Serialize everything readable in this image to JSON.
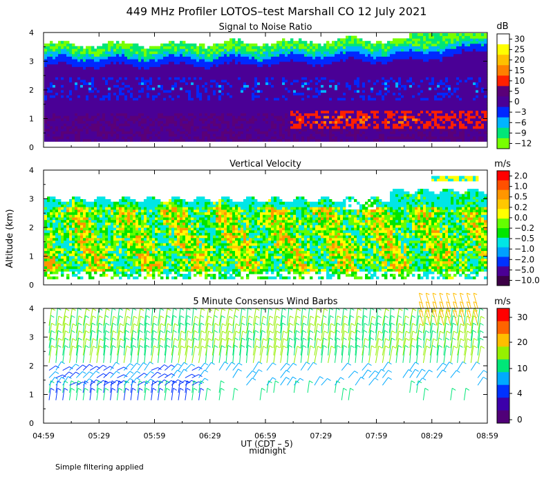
{
  "figure": {
    "title": "449 MHz Profiler LOTOS–test Marshall CO 12 July 2021",
    "ylabel": "Altitude (km)",
    "xlabel": "UT  (CDT – 5)",
    "midnight_label": "midnight",
    "footnote": "Simple filtering applied"
  },
  "chart_data": [
    {
      "type": "heatmap",
      "title": "Signal to Noise Ratio",
      "xlabel": "UT (CDT - 5)",
      "ylabel": "Altitude (km)",
      "x_ticks": [
        "04:59",
        "05:29",
        "05:59",
        "06:29",
        "06:59",
        "07:29",
        "07:59",
        "08:29",
        "08:59"
      ],
      "y_ticks": [
        "0",
        "1",
        "2",
        "3",
        "4"
      ],
      "ylim": [
        0,
        4
      ],
      "colorbar": {
        "unit": "dB",
        "ticks": [
          "30",
          "25",
          "20",
          "15",
          "10",
          "5",
          "0",
          "−3",
          "−6",
          "−9",
          "−12"
        ],
        "colors": [
          "#ffffff",
          "#ffff00",
          "#ffc000",
          "#ff8000",
          "#ff2000",
          "#5a0078",
          "#4a0096",
          "#0028ff",
          "#00b4ff",
          "#00e678",
          "#78ff00"
        ]
      }
    },
    {
      "type": "heatmap",
      "title": "Vertical Velocity",
      "xlabel": "UT (CDT - 5)",
      "ylabel": "Altitude (km)",
      "x_ticks": [
        "04:59",
        "05:29",
        "05:59",
        "06:29",
        "06:59",
        "07:29",
        "07:59",
        "08:29",
        "08:59"
      ],
      "y_ticks": [
        "0",
        "1",
        "2",
        "3",
        "4"
      ],
      "ylim": [
        0,
        4
      ],
      "colorbar": {
        "unit": "m/s",
        "ticks": [
          "2.0",
          "1.0",
          "0.5",
          "0.2",
          "0.0",
          "−0.2",
          "−0.5",
          "−1.0",
          "−2.0",
          "−5.0",
          "−10.0"
        ],
        "colors": [
          "#ff0000",
          "#ff5000",
          "#ff9600",
          "#ffc800",
          "#ffff00",
          "#64ff00",
          "#00e600",
          "#00e6e6",
          "#00a0ff",
          "#0032ff",
          "#4b0096",
          "#3c0046"
        ]
      }
    },
    {
      "type": "scatter",
      "title": "5 Minute Consensus Wind Barbs",
      "xlabel": "UT (CDT - 5)",
      "ylabel": "Altitude (km)",
      "x_ticks": [
        "04:59",
        "05:29",
        "05:59",
        "06:29",
        "06:59",
        "07:29",
        "07:59",
        "08:29",
        "08:59"
      ],
      "y_ticks": [
        "0",
        "1",
        "2",
        "3",
        "4"
      ],
      "ylim": [
        0,
        4
      ],
      "colorbar": {
        "unit": "m/s",
        "ticks": [
          "30",
          "20",
          "10",
          "4",
          "0"
        ],
        "colors": [
          "#ff0000",
          "#ff6400",
          "#ffbe00",
          "#96f000",
          "#00e678",
          "#00aaff",
          "#0032ff",
          "#3c00aa",
          "#500078"
        ]
      }
    }
  ]
}
